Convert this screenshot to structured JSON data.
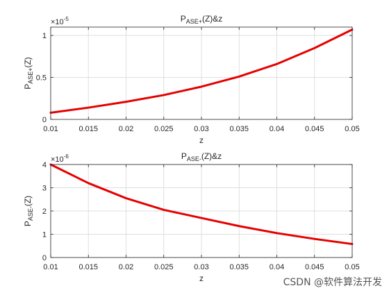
{
  "chart_data": [
    {
      "type": "line",
      "title_main": "P",
      "title_sub": "ASE+",
      "title_rest": "(Z)&z",
      "xlabel": "z",
      "ylabel_main": "P",
      "ylabel_sub": "ASE+",
      "ylabel_rest": "(Z)",
      "exponent_base": "×10",
      "exponent_power": "-5",
      "xlim": [
        0.01,
        0.05
      ],
      "ylim": [
        0,
        1.1
      ],
      "xticks": [
        0.01,
        0.015,
        0.02,
        0.025,
        0.03,
        0.035,
        0.04,
        0.045,
        0.05
      ],
      "xtick_labels": [
        "0.01",
        "0.015",
        "0.02",
        "0.025",
        "0.03",
        "0.035",
        "0.04",
        "0.045",
        "0.05"
      ],
      "yticks": [
        0,
        0.5,
        1
      ],
      "ytick_labels": [
        "0",
        "0.5",
        "1"
      ],
      "grid": true,
      "line_color": "#e60000",
      "series": [
        {
          "x": [
            0.01,
            0.015,
            0.02,
            0.025,
            0.03,
            0.035,
            0.04,
            0.045,
            0.05
          ],
          "y": [
            0.08,
            0.14,
            0.21,
            0.29,
            0.39,
            0.51,
            0.66,
            0.85,
            1.07
          ]
        }
      ]
    },
    {
      "type": "line",
      "title_main": "P",
      "title_sub": "ASE-",
      "title_rest": "(Z)&z",
      "xlabel": "z",
      "ylabel_main": "P",
      "ylabel_sub": "ASE-",
      "ylabel_rest": "(Z)",
      "exponent_base": "×10",
      "exponent_power": "-6",
      "xlim": [
        0.01,
        0.05
      ],
      "ylim": [
        0,
        4
      ],
      "xticks": [
        0.01,
        0.015,
        0.02,
        0.025,
        0.03,
        0.035,
        0.04,
        0.045,
        0.05
      ],
      "xtick_labels": [
        "0.01",
        "0.015",
        "0.02",
        "0.025",
        "0.03",
        "0.035",
        "0.04",
        "0.045",
        "0.05"
      ],
      "yticks": [
        0,
        1,
        2,
        3,
        4
      ],
      "ytick_labels": [
        "0",
        "1",
        "2",
        "3",
        "4"
      ],
      "grid": true,
      "line_color": "#e60000",
      "series": [
        {
          "x": [
            0.01,
            0.015,
            0.02,
            0.025,
            0.03,
            0.035,
            0.04,
            0.045,
            0.05
          ],
          "y": [
            4.0,
            3.2,
            2.55,
            2.05,
            1.7,
            1.35,
            1.05,
            0.8,
            0.58
          ]
        }
      ]
    }
  ],
  "watermark": "CSDN @软件算法开发"
}
